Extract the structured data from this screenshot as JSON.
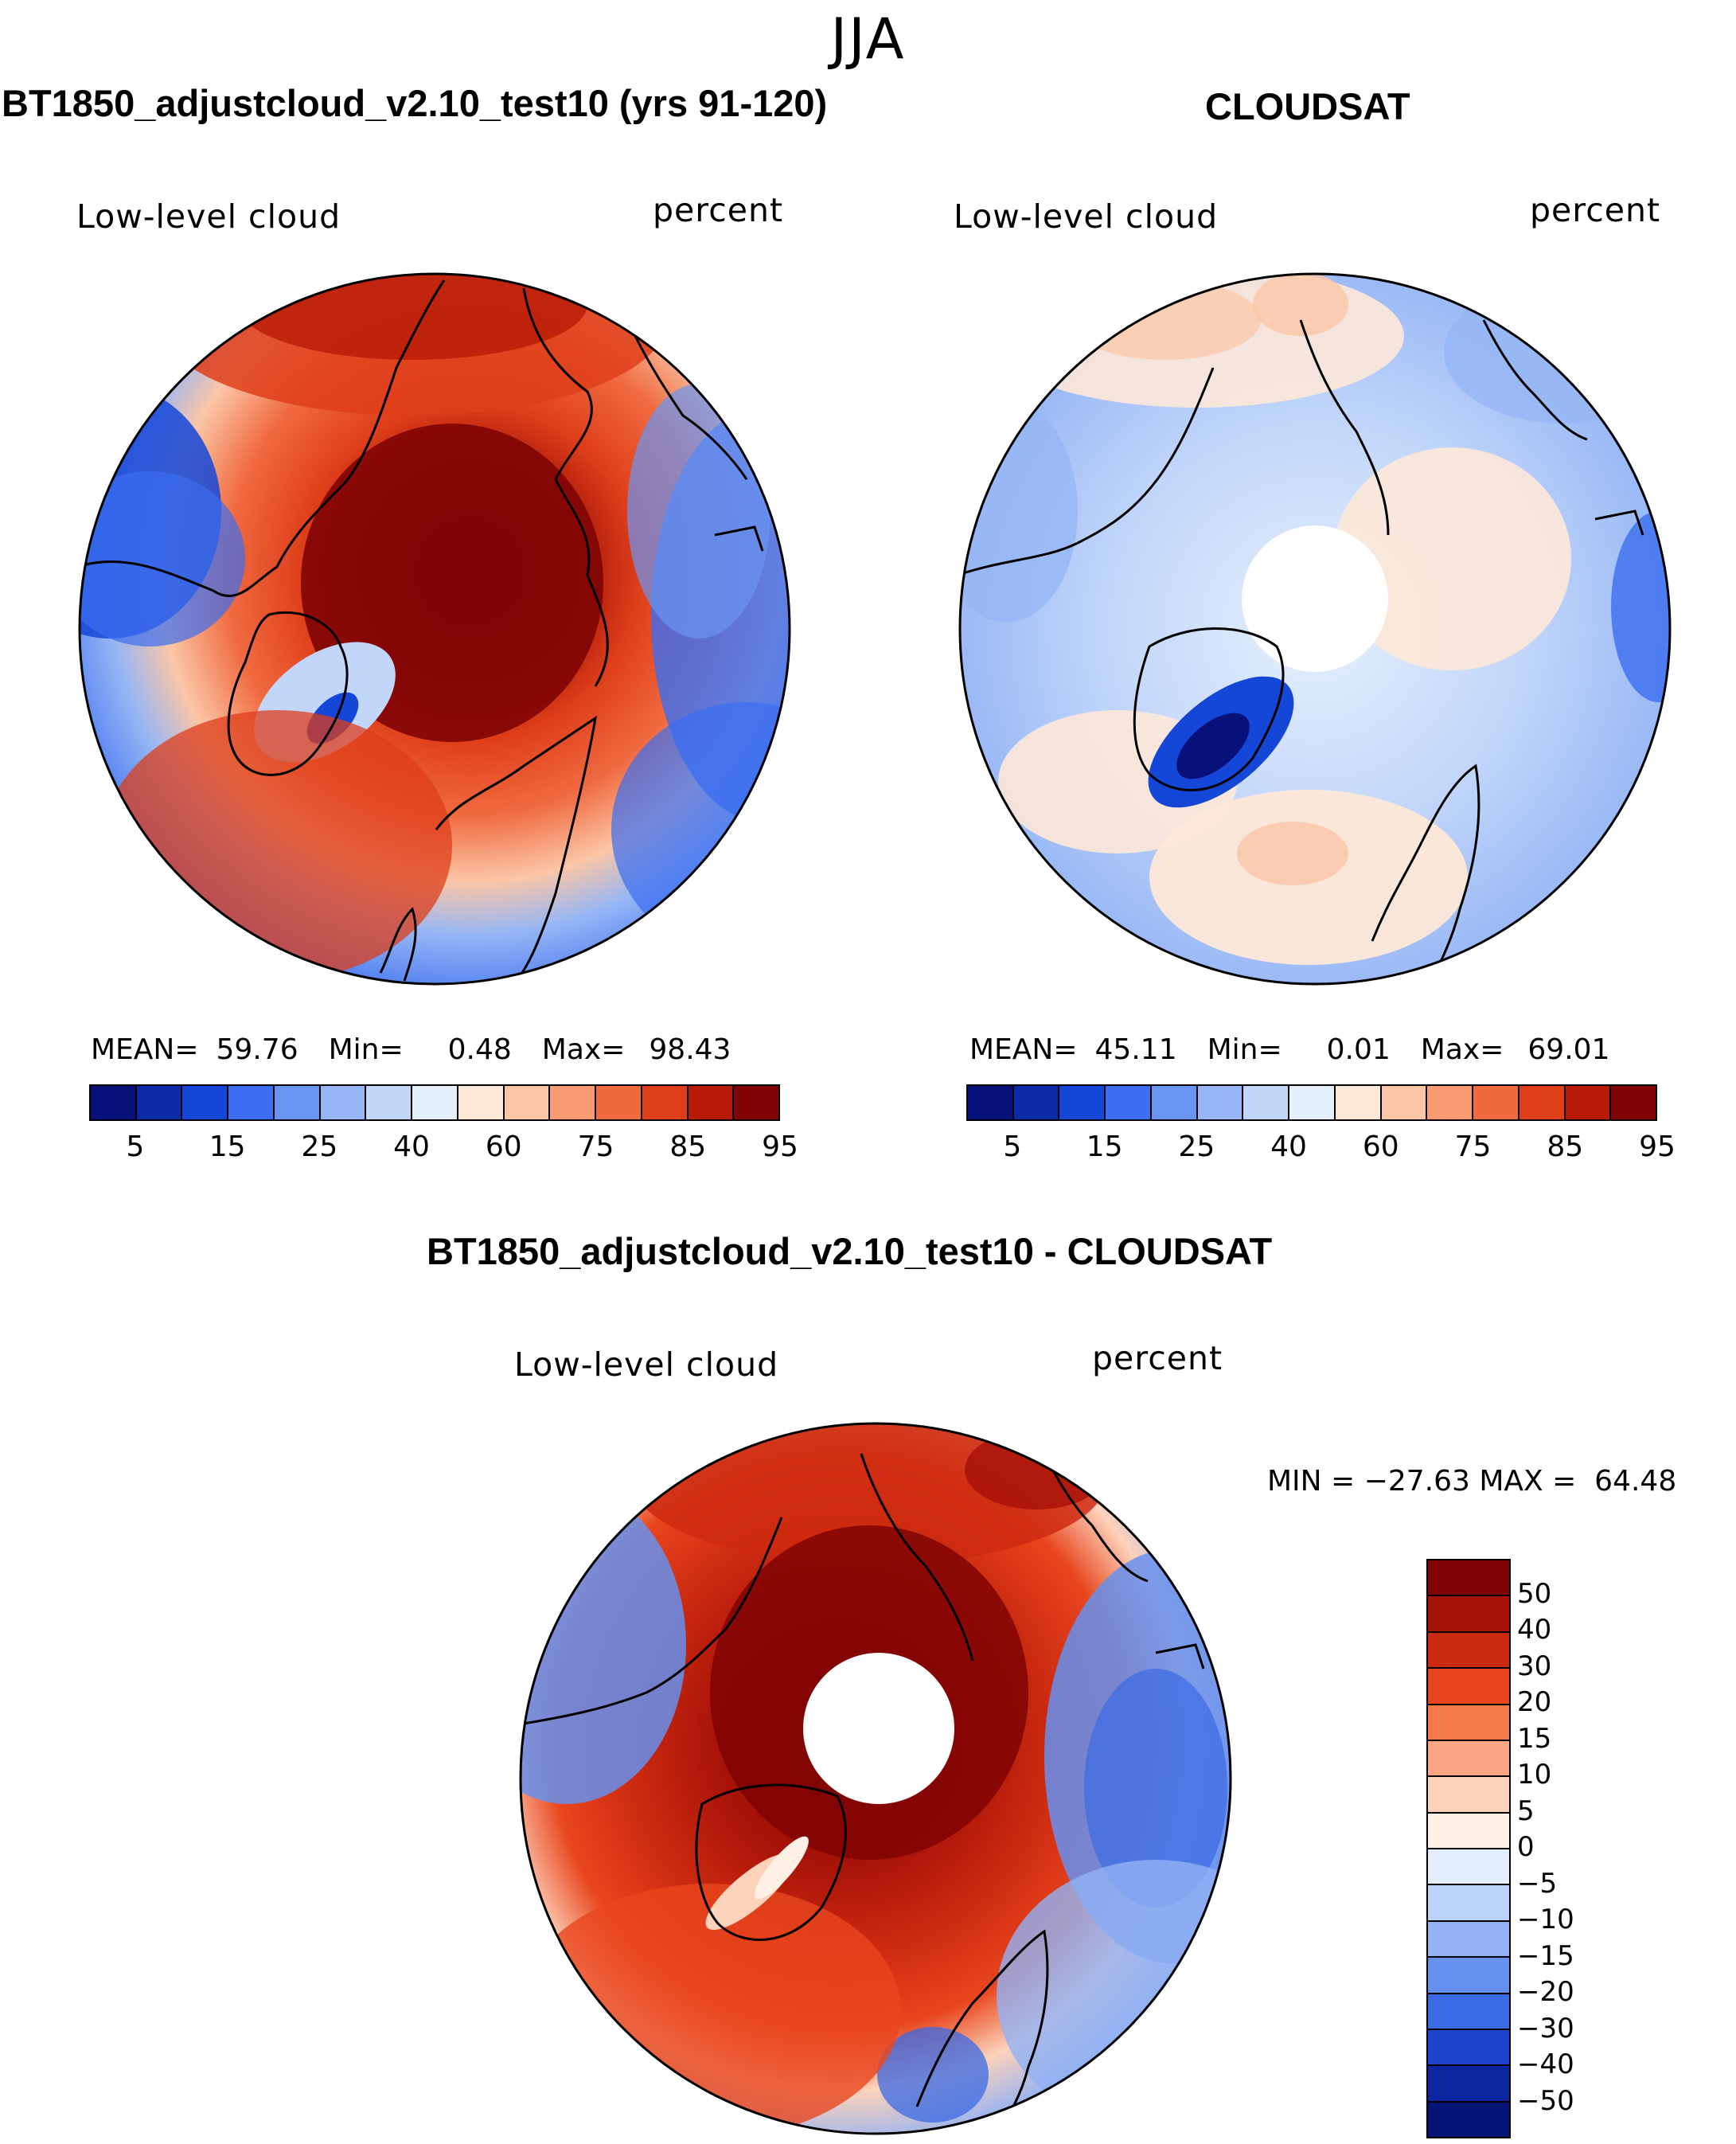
{
  "season": "JJA",
  "colors": {
    "absolute": [
      "#08107a",
      "#0a2aa8",
      "#1446d8",
      "#3b6ef0",
      "#6a94f2",
      "#96b6f5",
      "#c2d6fa",
      "#e4f0fc",
      "#fde8d8",
      "#fbc6a6",
      "#f89a72",
      "#f06a40",
      "#de3e1a",
      "#b81a08",
      "#800404"
    ],
    "difference": [
      "#800404",
      "#a51208",
      "#cc2a10",
      "#e8461e",
      "#f57a4a",
      "#fba684",
      "#fdd2ba",
      "#fef0e4",
      "#e2eefc",
      "#bcd2f8",
      "#92b2f4",
      "#6690ee",
      "#3a6ae4",
      "#1c44cc",
      "#0c26a0",
      "#061478"
    ]
  },
  "panels": {
    "model": {
      "title": "BT1850_adjustcloud_v2.10_test10 (yrs 91-120)",
      "variable": "Low-level cloud",
      "units": "percent",
      "mean_label": "MEAN=",
      "mean": "59.76",
      "min_label": "Min=",
      "min": "0.48",
      "max_label": "Max=",
      "max": "98.43"
    },
    "obs": {
      "title": "CLOUDSAT",
      "variable": "Low-level cloud",
      "units": "percent",
      "mean_label": "MEAN=",
      "mean": "45.11",
      "min_label": "Min=",
      "min": "0.01",
      "max_label": "Max=",
      "max": "69.01"
    },
    "diff": {
      "title": "BT1850_adjustcloud_v2.10_test10 - CLOUDSAT",
      "variable": "Low-level cloud",
      "units": "percent",
      "minmax_text": "MIN = −27.63 MAX =  64.48"
    }
  },
  "chart_data": [
    {
      "type": "heatmap",
      "projection": "north-polar-stereographic",
      "title": "BT1850_adjustcloud_v2.10_test10 (yrs 91-120)",
      "variable": "Low-level cloud",
      "units": "percent",
      "season": "JJA",
      "mean": 59.76,
      "min": 0.48,
      "max": 98.43,
      "colorbar_levels": [
        5,
        10,
        15,
        20,
        25,
        30,
        40,
        50,
        60,
        70,
        75,
        80,
        85,
        90,
        95
      ],
      "colorbar_tick_labels": [
        "5",
        "15",
        "25",
        "40",
        "60",
        "75",
        "85",
        "95"
      ]
    },
    {
      "type": "heatmap",
      "projection": "north-polar-stereographic",
      "title": "CLOUDSAT",
      "variable": "Low-level cloud",
      "units": "percent",
      "season": "JJA",
      "mean": 45.11,
      "min": 0.01,
      "max": 69.01,
      "colorbar_levels": [
        5,
        10,
        15,
        20,
        25,
        30,
        40,
        50,
        60,
        70,
        75,
        80,
        85,
        90,
        95
      ],
      "colorbar_tick_labels": [
        "5",
        "15",
        "25",
        "40",
        "60",
        "75",
        "85",
        "95"
      ]
    },
    {
      "type": "heatmap",
      "projection": "north-polar-stereographic",
      "title": "BT1850_adjustcloud_v2.10_test10 - CLOUDSAT",
      "variable": "Low-level cloud",
      "units": "percent",
      "season": "JJA",
      "min": -27.63,
      "max": 64.48,
      "colorbar_tick_labels": [
        "50",
        "40",
        "30",
        "20",
        "15",
        "10",
        "5",
        "0",
        "−5",
        "−10",
        "−15",
        "−20",
        "−30",
        "−40",
        "−50"
      ]
    }
  ]
}
